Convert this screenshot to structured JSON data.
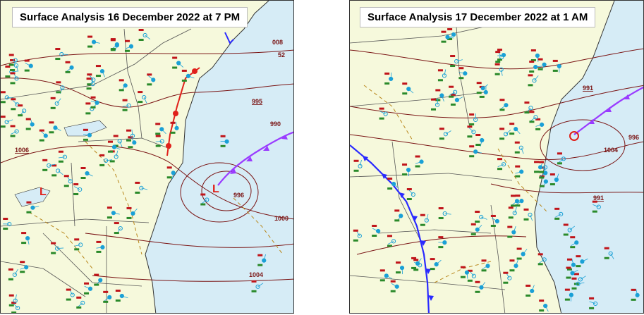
{
  "panels": [
    {
      "title": "Surface Analysis 16 December 2022 at 7 PM",
      "isobar_labels": [
        "995",
        "990",
        "1000",
        "1004",
        "1006",
        "996",
        "52",
        "008"
      ],
      "low_markers": [
        "L",
        "L"
      ]
    },
    {
      "title": "Surface Analysis 17 December 2022 at 1 AM",
      "isobar_labels": [
        "991",
        "991",
        "996",
        "1004"
      ],
      "low_markers": []
    }
  ],
  "colors": {
    "land": "#f6f9dc",
    "ocean": "#d6ecf6",
    "isobar": "#7a1414",
    "state_border": "#555555",
    "cold_front": "#2a2aff",
    "occluded_front": "#9a3cff",
    "warm_front": "#e0201a",
    "low": "#e0201a",
    "temperature": "#c0141a",
    "dewpoint": "#2a8a2a",
    "station": "#1aa0d6",
    "dashed_trough": "#b8861a"
  },
  "legend_note": ""
}
